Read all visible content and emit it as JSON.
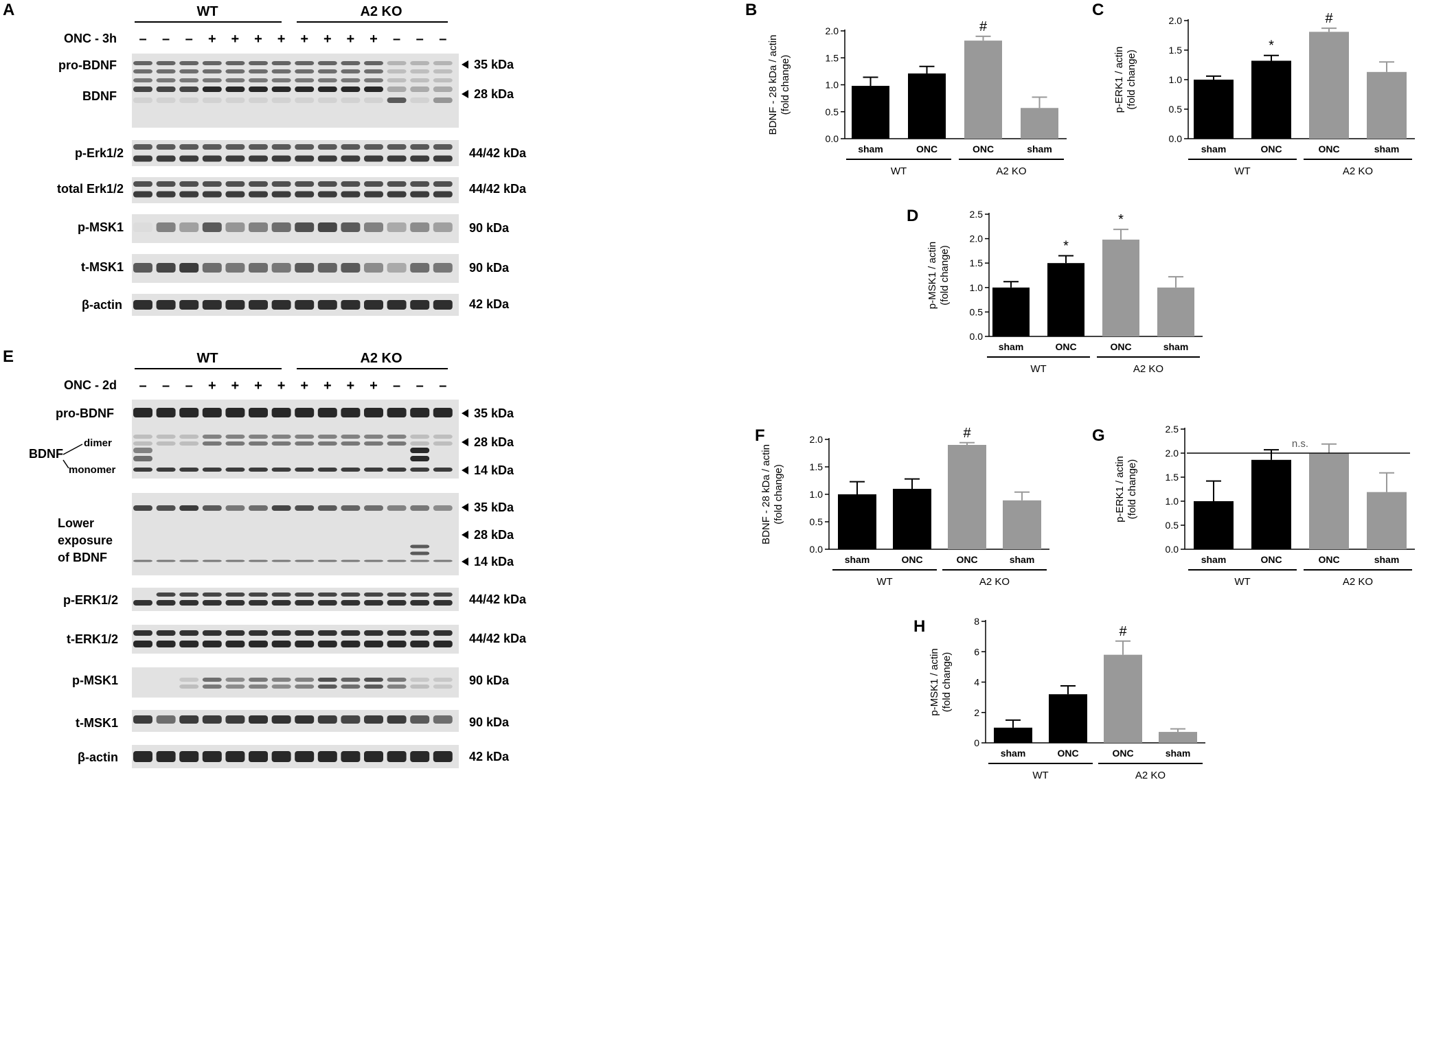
{
  "colors": {
    "wt": "#000000",
    "ko": "#999999"
  },
  "blots": [
    {
      "panel": "A",
      "group_labels": [
        "WT",
        "A2 KO"
      ],
      "treatment": "ONC - 3h",
      "signs": [
        "–",
        "–",
        "–",
        "+",
        "+",
        "+",
        "+",
        "+",
        "+",
        "+",
        "+",
        "–",
        "–",
        "–"
      ],
      "rows": [
        {
          "label": "pro-BDNF",
          "markers": [
            "35 kDa"
          ],
          "arrows": true
        },
        {
          "label": "BDNF",
          "markers": [
            "28 kDa"
          ],
          "arrows": true
        },
        {
          "label": "p-Erk1/2",
          "markers": [
            "44/42 kDa"
          ],
          "arrows": false
        },
        {
          "label": "total Erk1/2",
          "markers": [
            "44/42 kDa"
          ],
          "arrows": false
        },
        {
          "label": "p-MSK1",
          "markers": [
            "90 kDa"
          ],
          "arrows": false
        },
        {
          "label": "t-MSK1",
          "markers": [
            "90 kDa"
          ],
          "arrows": false
        },
        {
          "label": "β-actin",
          "markers": [
            "42 kDa"
          ],
          "arrows": false
        }
      ]
    },
    {
      "panel": "E",
      "group_labels": [
        "WT",
        "A2 KO"
      ],
      "treatment": "ONC - 2d",
      "signs": [
        "–",
        "–",
        "–",
        "+",
        "+",
        "+",
        "+",
        "+",
        "+",
        "+",
        "+",
        "–",
        "–",
        "–"
      ],
      "bdnf_labels": {
        "main": "BDNF",
        "dimer": "dimer",
        "monomer": "monomer"
      },
      "lower_exposure": [
        "Lower",
        "exposure",
        "of BDNF"
      ],
      "rows": [
        {
          "label": "pro-BDNF",
          "markers": [
            "35 kDa",
            "28 kDa",
            "14 kDa"
          ],
          "arrows": true
        },
        {
          "label": "",
          "markers": [
            "35 kDa",
            "28 kDa",
            "14 kDa"
          ],
          "arrows": true
        },
        {
          "label": "p-ERK1/2",
          "markers": [
            "44/42 kDa"
          ],
          "arrows": false
        },
        {
          "label": "t-ERK1/2",
          "markers": [
            "44/42 kDa"
          ],
          "arrows": false
        },
        {
          "label": "p-MSK1",
          "markers": [
            "90 kDa"
          ],
          "arrows": false
        },
        {
          "label": "t-MSK1",
          "markers": [
            "90 kDa"
          ],
          "arrows": false
        },
        {
          "label": "β-actin",
          "markers": [
            "42 kDa"
          ],
          "arrows": false
        }
      ]
    }
  ],
  "chart_data": [
    {
      "panel": "B",
      "type": "bar",
      "ylabel": [
        "BDNF - 28 kDa / actin",
        "(fold change)"
      ],
      "ylim": [
        0,
        2.0
      ],
      "yticks": [
        "0.0",
        "0.5",
        "1.0",
        "1.5",
        "2.0"
      ],
      "categories": [
        "sham",
        "ONC",
        "ONC",
        "sham"
      ],
      "groups": [
        "WT",
        "A2 KO"
      ],
      "values": [
        0.98,
        1.21,
        1.82,
        0.57
      ],
      "errors": [
        0.16,
        0.13,
        0.08,
        0.2
      ],
      "annotations": [
        "",
        "",
        "#",
        ""
      ],
      "sig_line": ""
    },
    {
      "panel": "C",
      "type": "bar",
      "ylabel": [
        "p-ERK1 / actin",
        "(fold change)"
      ],
      "ylim": [
        0,
        2.0
      ],
      "yticks": [
        "0.0",
        "0.5",
        "1.0",
        "1.5",
        "2.0"
      ],
      "categories": [
        "sham",
        "ONC",
        "ONC",
        "sham"
      ],
      "groups": [
        "WT",
        "A2 KO"
      ],
      "values": [
        1.0,
        1.32,
        1.81,
        1.13
      ],
      "errors": [
        0.06,
        0.09,
        0.06,
        0.17
      ],
      "annotations": [
        "",
        "*",
        "#",
        ""
      ],
      "sig_line": ""
    },
    {
      "panel": "D",
      "type": "bar",
      "ylabel": [
        "p-MSK1 / actin",
        "(fold change)"
      ],
      "ylim": [
        0,
        2.5
      ],
      "yticks": [
        "0.0",
        "0.5",
        "1.0",
        "1.5",
        "2.0",
        "2.5"
      ],
      "categories": [
        "sham",
        "ONC",
        "ONC",
        "sham"
      ],
      "groups": [
        "WT",
        "A2 KO"
      ],
      "values": [
        1.0,
        1.5,
        1.98,
        1.0
      ],
      "errors": [
        0.12,
        0.15,
        0.21,
        0.22
      ],
      "annotations": [
        "",
        "*",
        "*",
        ""
      ],
      "sig_line": ""
    },
    {
      "panel": "F",
      "type": "bar",
      "ylabel": [
        "BDNF - 28 kDa / actin",
        "(fold change)"
      ],
      "ylim": [
        0,
        2.0
      ],
      "yticks": [
        "0.0",
        "0.5",
        "1.0",
        "1.5",
        "2.0"
      ],
      "categories": [
        "sham",
        "ONC",
        "ONC",
        "sham"
      ],
      "groups": [
        "WT",
        "A2 KO"
      ],
      "values": [
        1.0,
        1.1,
        1.9,
        0.89
      ],
      "errors": [
        0.23,
        0.18,
        0.04,
        0.15
      ],
      "annotations": [
        "",
        "",
        "#",
        ""
      ],
      "sig_line": ""
    },
    {
      "panel": "G",
      "type": "bar",
      "ylabel": [
        "p-ERK1 / actin",
        "(fold change)"
      ],
      "ylim": [
        0,
        2.5
      ],
      "yticks": [
        "0.0",
        "0.5",
        "1.0",
        "1.5",
        "2.0",
        "2.5"
      ],
      "categories": [
        "sham",
        "ONC",
        "ONC",
        "sham"
      ],
      "groups": [
        "WT",
        "A2 KO"
      ],
      "values": [
        1.0,
        1.86,
        1.99,
        1.19
      ],
      "errors": [
        0.42,
        0.21,
        0.2,
        0.4
      ],
      "annotations": [
        "",
        "",
        "",
        ""
      ],
      "sig_line": "n.s."
    },
    {
      "panel": "H",
      "type": "bar",
      "ylabel": [
        "p-MSK1 / actin",
        "(fold change)"
      ],
      "ylim": [
        0,
        8
      ],
      "yticks": [
        "0",
        "2",
        "4",
        "6",
        "8"
      ],
      "categories": [
        "sham",
        "ONC",
        "ONC",
        "sham"
      ],
      "groups": [
        "WT",
        "A2 KO"
      ],
      "values": [
        1.0,
        3.2,
        5.8,
        0.72
      ],
      "errors": [
        0.5,
        0.55,
        0.9,
        0.2
      ],
      "annotations": [
        "",
        "",
        "#",
        ""
      ],
      "sig_line": ""
    }
  ]
}
